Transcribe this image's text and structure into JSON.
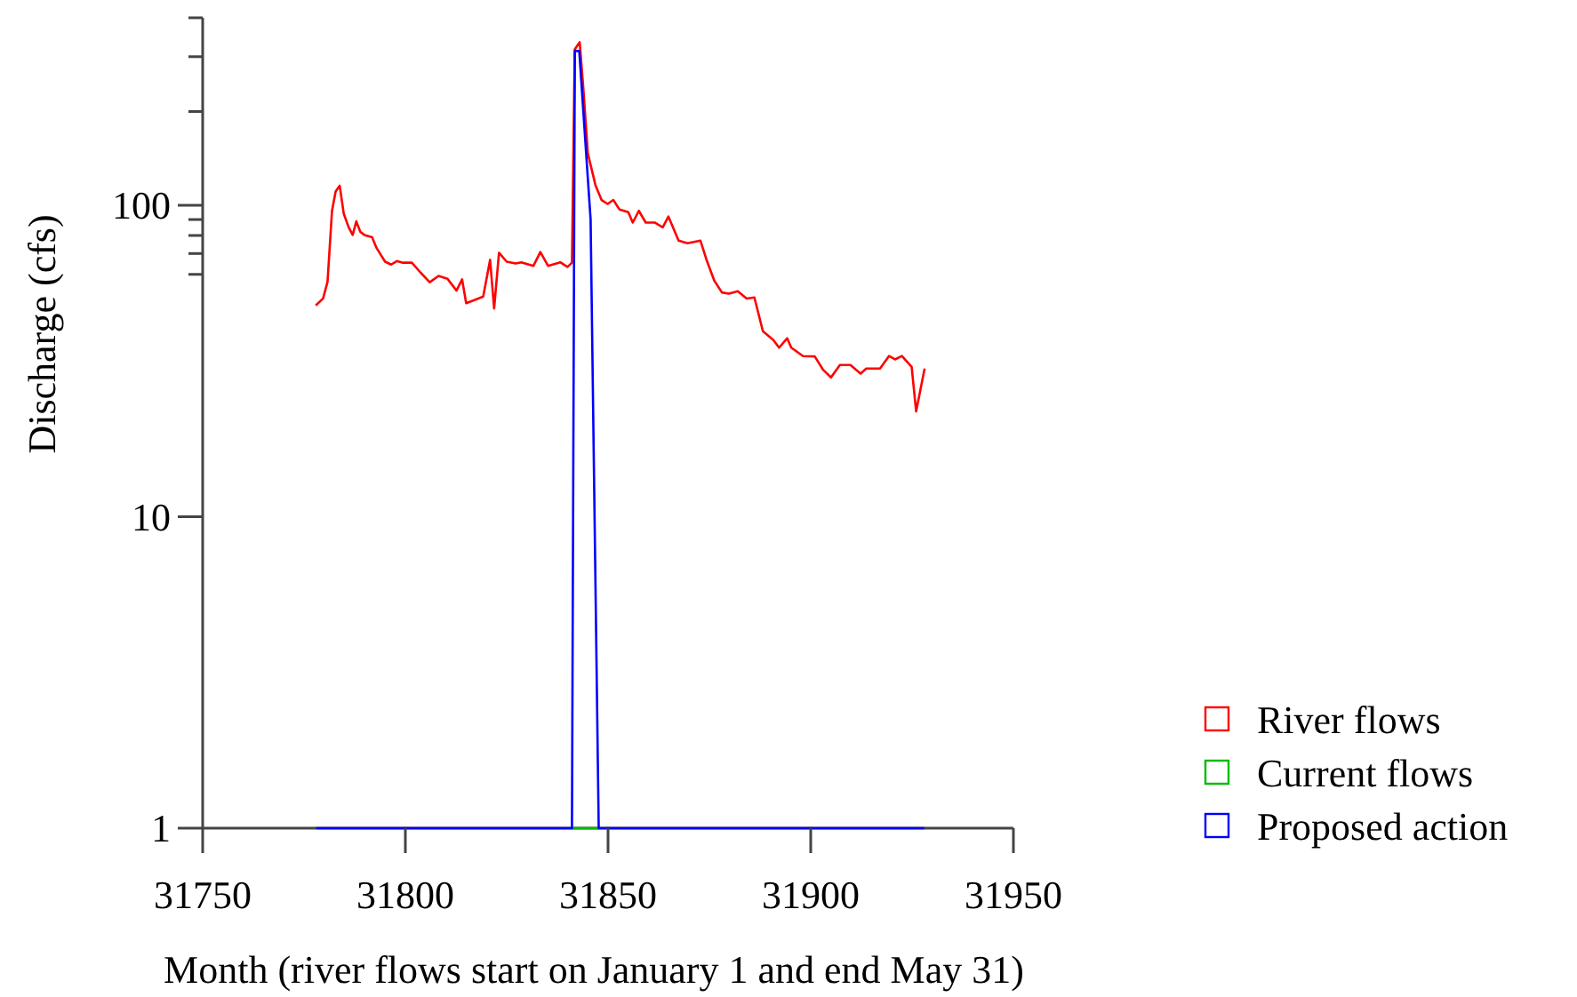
{
  "chart_data": {
    "type": "line",
    "xlabel": "Month (river flows start on January 1 and end May 31)",
    "ylabel": "Discharge (cfs)",
    "log": "y",
    "xlim": [
      31750,
      31950
    ],
    "xticks": [
      31750,
      31800,
      31850,
      31900,
      31950
    ],
    "ylim": [
      1,
      400
    ],
    "yticks": [
      1,
      10,
      {
        "value": 60,
        "label": null
      },
      {
        "value": 70,
        "label": null
      },
      {
        "value": 80,
        "label": null
      },
      {
        "value": 90,
        "label": null
      },
      100,
      {
        "value": 200,
        "label": null
      },
      {
        "value": 300,
        "label": null
      },
      {
        "value": 400,
        "label": null
      }
    ],
    "grid": false,
    "legend": "right",
    "marker": "none",
    "line_style": "solid",
    "series": [
      {
        "name": "River flows",
        "color": "#ff0000",
        "x": [
          31777.9,
          31779.7,
          31780.8,
          31781.9,
          31782.8,
          31783.8,
          31784.8,
          31786.0,
          31787.0,
          31787.9,
          31788.9,
          31789.9,
          31791.8,
          31792.9,
          31795.0,
          31796.5,
          31797.9,
          31799.4,
          31801.6,
          31803.8,
          31806.0,
          31808.2,
          31810.4,
          31812.6,
          31814.0,
          31815.0,
          31817.0,
          31819.2,
          31820.9,
          31821.9,
          31823.1,
          31825.0,
          31827.2,
          31828.6,
          31831.6,
          31833.3,
          31835.2,
          31838.2,
          31840.0,
          31841.1,
          31841.8,
          31843.0,
          31843.9,
          31845.0,
          31846.9,
          31848.4,
          31849.9,
          31851.3,
          31852.8,
          31855.0,
          31856.1,
          31857.6,
          31859.3,
          31861.5,
          31863.5,
          31864.9,
          31867.4,
          31869.6,
          31872.8,
          31874.3,
          31876.2,
          31878.1,
          31879.8,
          31882.0,
          31884.2,
          31886.1,
          31888.2,
          31890.8,
          31892.2,
          31894.2,
          31895.2,
          31898.1,
          31901.0,
          31903.0,
          31905.0,
          31907.2,
          31909.8,
          31912.3,
          31913.7,
          31917.1,
          31919.3,
          31920.8,
          31922.5,
          31924.9,
          31926.0,
          31928.1
        ],
        "values": [
          47.7,
          50.2,
          56.8,
          95.8,
          110.7,
          115.6,
          94.0,
          85.1,
          80.3,
          88.8,
          82.1,
          80.3,
          78.9,
          72.9,
          65.9,
          64.5,
          66.2,
          65.4,
          65.4,
          60.7,
          56.6,
          59.3,
          58.1,
          53.2,
          57.8,
          48.5,
          49.6,
          50.9,
          66.8,
          46.6,
          70.4,
          65.9,
          65.0,
          65.6,
          63.9,
          70.8,
          63.9,
          65.6,
          63.4,
          65.4,
          317,
          334,
          238,
          147,
          116,
          104,
          101,
          104,
          97,
          95,
          88,
          96,
          88,
          88,
          85,
          92,
          77,
          75.5,
          77,
          66.8,
          57.3,
          52.5,
          52.0,
          53.0,
          50.2,
          50.6,
          39.4,
          36.9,
          34.9,
          37.4,
          34.9,
          32.8,
          32.7,
          29.7,
          28.0,
          30.7,
          30.7,
          28.8,
          29.9,
          29.9,
          32.8,
          32.0,
          32.8,
          30.3,
          21.8,
          29.9
        ]
      },
      {
        "name": "Current flows",
        "color": "#00bb00",
        "x": [
          31841.1,
          31847.7
        ],
        "values": [
          1,
          1
        ]
      },
      {
        "name": "Proposed action",
        "color": "#0000ff",
        "x": [
          31778,
          31841.1,
          31841.8,
          31842.9,
          31845.7,
          31847.7,
          31928
        ],
        "values": [
          1,
          1,
          313,
          313,
          90,
          1,
          1
        ]
      }
    ]
  }
}
